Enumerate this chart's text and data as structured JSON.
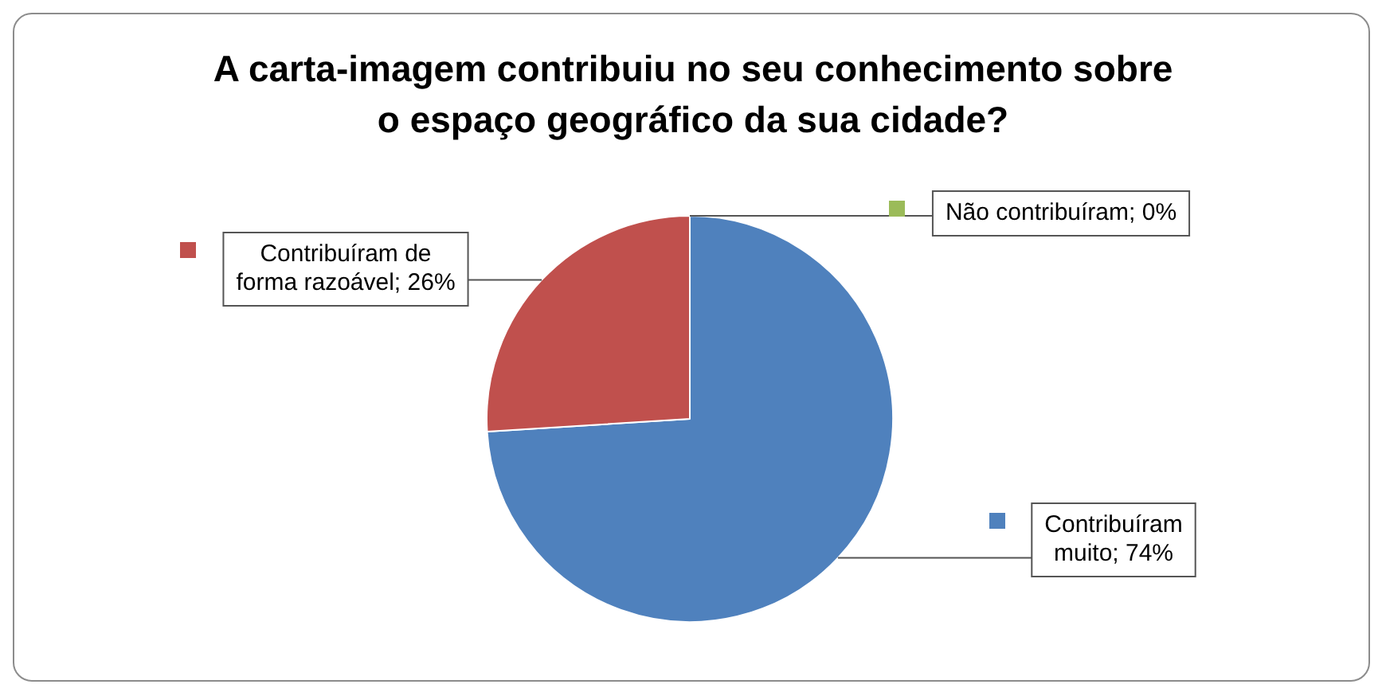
{
  "chart_data": {
    "type": "pie",
    "title": "A carta-imagem contribuiu no seu conhecimento sobre o espaço geográfico da sua cidade?",
    "categories": [
      "Contribuíram muito",
      "Contribuíram de forma razoável",
      "Não contribuíram"
    ],
    "values": [
      74,
      26,
      0
    ],
    "value_labels": [
      "74%",
      "26%",
      "0%"
    ],
    "colors": [
      "#4f81bd",
      "#c0504d",
      "#9bbb59"
    ]
  }
}
